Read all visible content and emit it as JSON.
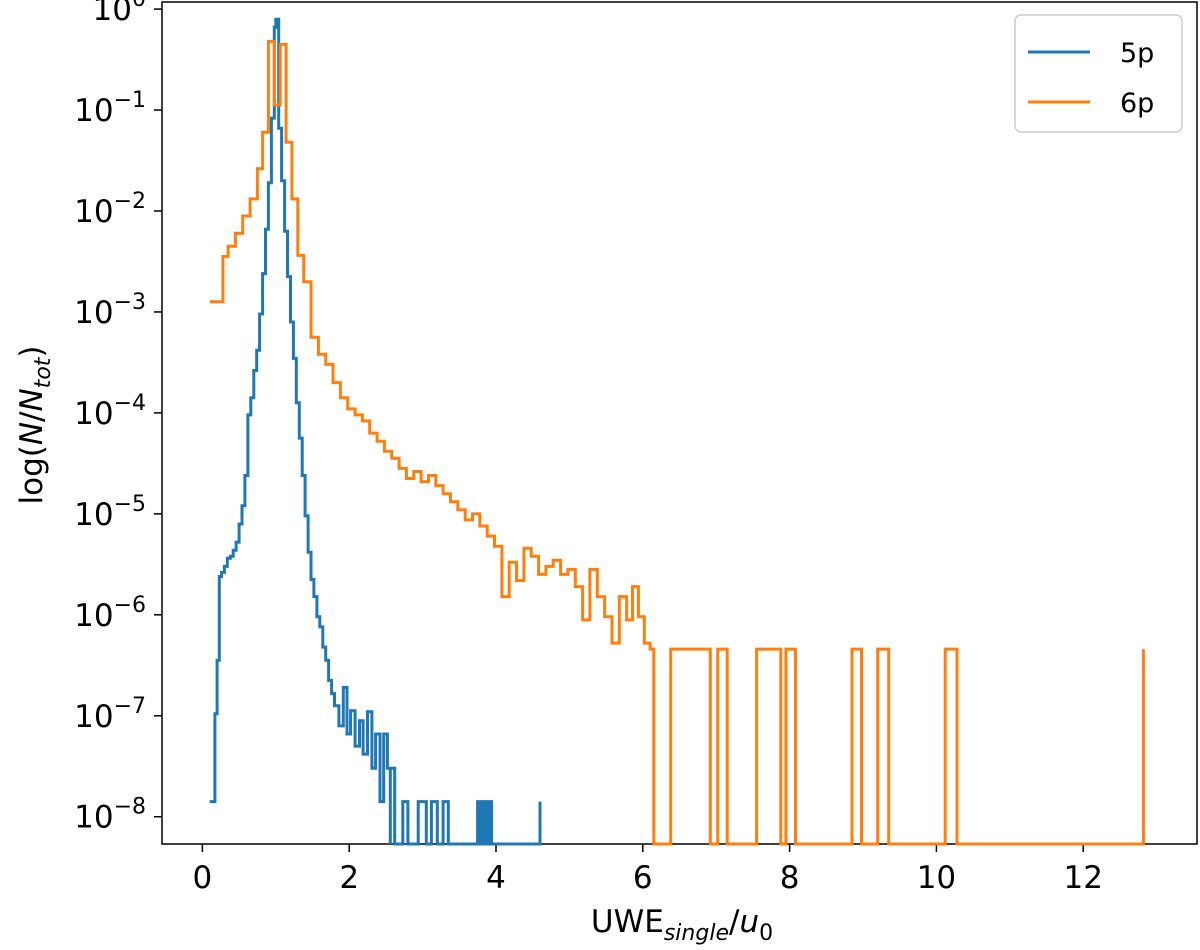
{
  "chart_data": {
    "type": "line",
    "step": true,
    "xlabel_main": "UWE",
    "xlabel_sub": "single",
    "xlabel_sep": "/",
    "xlabel_var": "u",
    "xlabel_var_sub": "0",
    "ylabel_pre": "log(",
    "ylabel_n": "N",
    "ylabel_sep": "/",
    "ylabel_ntot": "N",
    "ylabel_ntot_sub": "tot",
    "ylabel_post": ")",
    "xlim": [
      -0.55,
      13.55
    ],
    "ylim": [
      -8.27,
      0.07
    ],
    "yscale": "log",
    "x_ticks": [
      0,
      2,
      4,
      6,
      8,
      10,
      12
    ],
    "x_tick_labels": [
      "0",
      "2",
      "4",
      "6",
      "8",
      "10",
      "12"
    ],
    "y_ticks": [
      0,
      -1,
      -2,
      -3,
      -4,
      -5,
      -6,
      -7,
      -8
    ],
    "y_tick_base": "10",
    "y_tick_exponents": [
      "0",
      "−1",
      "−2",
      "−3",
      "−4",
      "−5",
      "−6",
      "−7",
      "−8"
    ],
    "grid": false,
    "legend_position": "top-right",
    "series": [
      {
        "name": "5p",
        "color": "#1f77b4",
        "points": [
          [
            0.1,
            -7.85
          ],
          [
            0.17,
            -7.85
          ],
          [
            0.17,
            -6.98
          ],
          [
            0.2,
            -6.98
          ],
          [
            0.2,
            -6.45
          ],
          [
            0.23,
            -6.45
          ],
          [
            0.23,
            -5.62
          ],
          [
            0.26,
            -5.62
          ],
          [
            0.26,
            -5.58
          ],
          [
            0.3,
            -5.58
          ],
          [
            0.3,
            -5.52
          ],
          [
            0.34,
            -5.52
          ],
          [
            0.34,
            -5.44
          ],
          [
            0.38,
            -5.44
          ],
          [
            0.38,
            -5.42
          ],
          [
            0.42,
            -5.42
          ],
          [
            0.42,
            -5.36
          ],
          [
            0.46,
            -5.36
          ],
          [
            0.46,
            -5.28
          ],
          [
            0.5,
            -5.28
          ],
          [
            0.5,
            -5.1
          ],
          [
            0.54,
            -5.1
          ],
          [
            0.54,
            -4.92
          ],
          [
            0.58,
            -4.92
          ],
          [
            0.58,
            -4.62
          ],
          [
            0.62,
            -4.62
          ],
          [
            0.62,
            -4.02
          ],
          [
            0.66,
            -4.02
          ],
          [
            0.66,
            -3.85
          ],
          [
            0.7,
            -3.85
          ],
          [
            0.7,
            -3.58
          ],
          [
            0.74,
            -3.58
          ],
          [
            0.74,
            -3.38
          ],
          [
            0.78,
            -3.38
          ],
          [
            0.78,
            -3.02
          ],
          [
            0.82,
            -3.02
          ],
          [
            0.82,
            -2.62
          ],
          [
            0.86,
            -2.62
          ],
          [
            0.86,
            -2.18
          ],
          [
            0.9,
            -2.18
          ],
          [
            0.9,
            -1.72
          ],
          [
            0.94,
            -1.72
          ],
          [
            0.94,
            -1.08
          ],
          [
            0.98,
            -1.08
          ],
          [
            0.98,
            -0.18
          ],
          [
            1.0,
            -0.18
          ],
          [
            1.0,
            -0.1
          ],
          [
            1.04,
            -0.1
          ],
          [
            1.04,
            -1.18
          ],
          [
            1.08,
            -1.18
          ],
          [
            1.08,
            -1.7
          ],
          [
            1.12,
            -1.7
          ],
          [
            1.12,
            -2.2
          ],
          [
            1.16,
            -2.2
          ],
          [
            1.16,
            -2.65
          ],
          [
            1.2,
            -2.65
          ],
          [
            1.2,
            -3.1
          ],
          [
            1.24,
            -3.1
          ],
          [
            1.24,
            -3.46
          ],
          [
            1.28,
            -3.46
          ],
          [
            1.28,
            -3.9
          ],
          [
            1.32,
            -3.9
          ],
          [
            1.32,
            -4.25
          ],
          [
            1.36,
            -4.25
          ],
          [
            1.36,
            -4.62
          ],
          [
            1.4,
            -4.62
          ],
          [
            1.4,
            -5.02
          ],
          [
            1.44,
            -5.02
          ],
          [
            1.44,
            -5.38
          ],
          [
            1.48,
            -5.38
          ],
          [
            1.48,
            -5.65
          ],
          [
            1.52,
            -5.65
          ],
          [
            1.52,
            -5.82
          ],
          [
            1.56,
            -5.82
          ],
          [
            1.56,
            -6.02
          ],
          [
            1.6,
            -6.02
          ],
          [
            1.6,
            -6.12
          ],
          [
            1.64,
            -6.12
          ],
          [
            1.64,
            -6.32
          ],
          [
            1.68,
            -6.32
          ],
          [
            1.68,
            -6.45
          ],
          [
            1.72,
            -6.45
          ],
          [
            1.72,
            -6.65
          ],
          [
            1.76,
            -6.65
          ],
          [
            1.76,
            -6.78
          ],
          [
            1.8,
            -6.78
          ],
          [
            1.8,
            -6.9
          ],
          [
            1.86,
            -6.9
          ],
          [
            1.86,
            -7.1
          ],
          [
            1.92,
            -7.1
          ],
          [
            1.92,
            -6.72
          ],
          [
            1.97,
            -6.72
          ],
          [
            1.97,
            -7.18
          ],
          [
            2.02,
            -7.18
          ],
          [
            2.02,
            -6.95
          ],
          [
            2.08,
            -6.95
          ],
          [
            2.08,
            -7.3
          ],
          [
            2.14,
            -7.3
          ],
          [
            2.14,
            -7.05
          ],
          [
            2.19,
            -7.05
          ],
          [
            2.19,
            -7.38
          ],
          [
            2.25,
            -7.38
          ],
          [
            2.25,
            -6.96
          ],
          [
            2.31,
            -6.96
          ],
          [
            2.31,
            -7.52
          ],
          [
            2.36,
            -7.52
          ],
          [
            2.36,
            -7.18
          ],
          [
            2.42,
            -7.18
          ],
          [
            2.42,
            -7.85
          ],
          [
            2.47,
            -7.85
          ],
          [
            2.47,
            -7.18
          ],
          [
            2.52,
            -7.18
          ],
          [
            2.52,
            -7.52
          ],
          [
            2.56,
            -7.52
          ],
          [
            2.56,
            -8.27
          ],
          [
            2.56,
            -7.52
          ],
          [
            2.56,
            -7.52
          ],
          [
            2.62,
            -7.52
          ],
          [
            2.62,
            -8.27
          ],
          [
            2.73,
            -8.27
          ],
          [
            2.73,
            -7.85
          ],
          [
            2.8,
            -7.85
          ],
          [
            2.8,
            -8.27
          ],
          [
            2.94,
            -8.27
          ],
          [
            2.94,
            -7.85
          ],
          [
            3.05,
            -7.85
          ],
          [
            3.05,
            -8.27
          ],
          [
            3.12,
            -8.27
          ],
          [
            3.12,
            -7.85
          ],
          [
            3.2,
            -7.85
          ],
          [
            3.2,
            -8.27
          ],
          [
            3.28,
            -8.27
          ],
          [
            3.28,
            -7.85
          ],
          [
            3.35,
            -7.85
          ],
          [
            3.35,
            -8.27
          ],
          [
            3.75,
            -8.27
          ],
          [
            3.75,
            -7.85
          ],
          [
            3.79,
            -7.85
          ],
          [
            3.79,
            -8.27
          ],
          [
            3.82,
            -8.27
          ],
          [
            3.82,
            -7.85
          ],
          [
            3.86,
            -7.85
          ],
          [
            3.86,
            -8.27
          ],
          [
            3.9,
            -8.27
          ],
          [
            3.9,
            -7.85
          ],
          [
            3.94,
            -7.85
          ],
          [
            3.94,
            -8.27
          ],
          [
            4.6,
            -8.27
          ],
          [
            4.6,
            -7.85
          ]
        ]
      },
      {
        "name": "6p",
        "color": "#ff7f0e",
        "points": [
          [
            0.1,
            -2.9
          ],
          [
            0.28,
            -2.9
          ],
          [
            0.28,
            -2.45
          ],
          [
            0.35,
            -2.45
          ],
          [
            0.35,
            -2.35
          ],
          [
            0.45,
            -2.35
          ],
          [
            0.45,
            -2.22
          ],
          [
            0.55,
            -2.22
          ],
          [
            0.55,
            -2.05
          ],
          [
            0.65,
            -2.05
          ],
          [
            0.65,
            -1.88
          ],
          [
            0.75,
            -1.88
          ],
          [
            0.75,
            -1.58
          ],
          [
            0.82,
            -1.58
          ],
          [
            0.82,
            -1.22
          ],
          [
            0.9,
            -1.22
          ],
          [
            0.9,
            -0.32
          ],
          [
            0.98,
            -0.32
          ],
          [
            0.98,
            -0.95
          ],
          [
            1.06,
            -0.95
          ],
          [
            1.06,
            -0.35
          ],
          [
            1.14,
            -0.35
          ],
          [
            1.14,
            -1.32
          ],
          [
            1.22,
            -1.32
          ],
          [
            1.22,
            -1.88
          ],
          [
            1.3,
            -1.88
          ],
          [
            1.3,
            -2.44
          ],
          [
            1.38,
            -2.44
          ],
          [
            1.38,
            -2.7
          ],
          [
            1.48,
            -2.7
          ],
          [
            1.48,
            -3.25
          ],
          [
            1.58,
            -3.25
          ],
          [
            1.58,
            -3.42
          ],
          [
            1.68,
            -3.42
          ],
          [
            1.68,
            -3.52
          ],
          [
            1.78,
            -3.52
          ],
          [
            1.78,
            -3.7
          ],
          [
            1.88,
            -3.7
          ],
          [
            1.88,
            -3.85
          ],
          [
            1.98,
            -3.85
          ],
          [
            1.98,
            -3.96
          ],
          [
            2.08,
            -3.96
          ],
          [
            2.08,
            -4.02
          ],
          [
            2.18,
            -4.02
          ],
          [
            2.18,
            -4.08
          ],
          [
            2.28,
            -4.08
          ],
          [
            2.28,
            -4.2
          ],
          [
            2.38,
            -4.2
          ],
          [
            2.38,
            -4.28
          ],
          [
            2.48,
            -4.28
          ],
          [
            2.48,
            -4.38
          ],
          [
            2.58,
            -4.38
          ],
          [
            2.58,
            -4.45
          ],
          [
            2.68,
            -4.45
          ],
          [
            2.68,
            -4.55
          ],
          [
            2.78,
            -4.55
          ],
          [
            2.78,
            -4.65
          ],
          [
            2.88,
            -4.65
          ],
          [
            2.88,
            -4.58
          ],
          [
            2.98,
            -4.58
          ],
          [
            2.98,
            -4.68
          ],
          [
            3.08,
            -4.68
          ],
          [
            3.08,
            -4.62
          ],
          [
            3.18,
            -4.62
          ],
          [
            3.18,
            -4.72
          ],
          [
            3.28,
            -4.72
          ],
          [
            3.28,
            -4.8
          ],
          [
            3.38,
            -4.8
          ],
          [
            3.38,
            -4.88
          ],
          [
            3.48,
            -4.88
          ],
          [
            3.48,
            -4.96
          ],
          [
            3.58,
            -4.96
          ],
          [
            3.58,
            -5.06
          ],
          [
            3.68,
            -5.06
          ],
          [
            3.68,
            -5.0
          ],
          [
            3.78,
            -5.0
          ],
          [
            3.78,
            -5.12
          ],
          [
            3.88,
            -5.12
          ],
          [
            3.88,
            -5.22
          ],
          [
            3.98,
            -5.22
          ],
          [
            3.98,
            -5.32
          ],
          [
            4.08,
            -5.32
          ],
          [
            4.08,
            -5.82
          ],
          [
            4.18,
            -5.82
          ],
          [
            4.18,
            -5.48
          ],
          [
            4.28,
            -5.48
          ],
          [
            4.28,
            -5.66
          ],
          [
            4.38,
            -5.66
          ],
          [
            4.38,
            -5.34
          ],
          [
            4.48,
            -5.34
          ],
          [
            4.48,
            -5.42
          ],
          [
            4.58,
            -5.42
          ],
          [
            4.58,
            -5.6
          ],
          [
            4.68,
            -5.6
          ],
          [
            4.68,
            -5.52
          ],
          [
            4.78,
            -5.52
          ],
          [
            4.78,
            -5.46
          ],
          [
            4.88,
            -5.46
          ],
          [
            4.88,
            -5.6
          ],
          [
            4.98,
            -5.6
          ],
          [
            4.98,
            -5.55
          ],
          [
            5.08,
            -5.55
          ],
          [
            5.08,
            -5.72
          ],
          [
            5.18,
            -5.72
          ],
          [
            5.18,
            -6.05
          ],
          [
            5.28,
            -6.05
          ],
          [
            5.28,
            -5.55
          ],
          [
            5.38,
            -5.55
          ],
          [
            5.38,
            -5.82
          ],
          [
            5.48,
            -5.82
          ],
          [
            5.48,
            -6.02
          ],
          [
            5.58,
            -6.02
          ],
          [
            5.58,
            -6.28
          ],
          [
            5.68,
            -6.28
          ],
          [
            5.68,
            -5.82
          ],
          [
            5.78,
            -5.82
          ],
          [
            5.78,
            -6.05
          ],
          [
            5.86,
            -6.05
          ],
          [
            5.86,
            -5.72
          ],
          [
            5.94,
            -5.72
          ],
          [
            5.94,
            -6.02
          ],
          [
            6.02,
            -6.02
          ],
          [
            6.02,
            -6.28
          ],
          [
            6.1,
            -6.28
          ],
          [
            6.1,
            -6.34
          ],
          [
            6.15,
            -6.34
          ],
          [
            6.15,
            -8.27
          ],
          [
            6.38,
            -8.27
          ],
          [
            6.38,
            -6.34
          ],
          [
            6.92,
            -6.34
          ],
          [
            6.92,
            -8.27
          ],
          [
            7.02,
            -8.27
          ],
          [
            7.02,
            -6.34
          ],
          [
            7.15,
            -6.34
          ],
          [
            7.15,
            -8.27
          ],
          [
            7.55,
            -8.27
          ],
          [
            7.55,
            -6.34
          ],
          [
            7.88,
            -6.34
          ],
          [
            7.88,
            -8.27
          ],
          [
            7.95,
            -8.27
          ],
          [
            7.95,
            -6.34
          ],
          [
            8.08,
            -6.34
          ],
          [
            8.08,
            -8.27
          ],
          [
            8.85,
            -8.27
          ],
          [
            8.85,
            -6.34
          ],
          [
            8.98,
            -6.34
          ],
          [
            8.98,
            -8.27
          ],
          [
            9.2,
            -8.27
          ],
          [
            9.2,
            -6.34
          ],
          [
            9.35,
            -6.34
          ],
          [
            9.35,
            -8.27
          ],
          [
            10.12,
            -8.27
          ],
          [
            10.12,
            -6.34
          ],
          [
            10.28,
            -6.34
          ],
          [
            10.28,
            -8.27
          ],
          [
            12.82,
            -8.27
          ],
          [
            12.82,
            -6.34
          ]
        ]
      }
    ]
  }
}
